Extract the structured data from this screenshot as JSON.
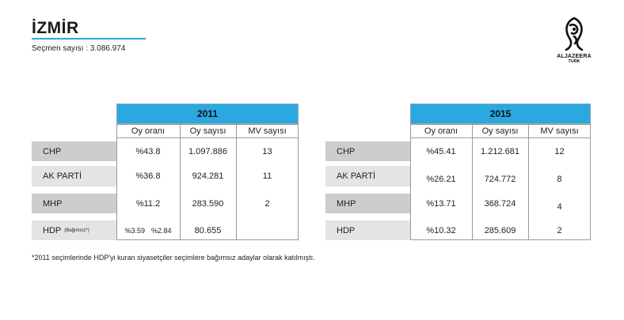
{
  "header": {
    "title": "İZMİR",
    "voters": "Seçmen sayısı : 3.086.974"
  },
  "logo": {
    "name": "ALJAZEERA",
    "sub": "TURK"
  },
  "columns": [
    "Oy oranı",
    "Oy sayısı",
    "MV sayısı"
  ],
  "table_2011": {
    "year": "2011",
    "rows": [
      {
        "party": "CHP",
        "party_note": "",
        "rate": "%43.8",
        "rate_split": [
          "",
          ""
        ],
        "votes": "1.097.886",
        "mv": "13"
      },
      {
        "party": "AK PARTİ",
        "party_note": "",
        "rate": "%36.8",
        "rate_split": [
          "",
          ""
        ],
        "votes": "924.281",
        "mv": "11"
      },
      {
        "party": "MHP",
        "party_note": "",
        "rate": "%11.2",
        "rate_split": [
          "",
          ""
        ],
        "votes": "283.590",
        "mv": "2"
      },
      {
        "party": "HDP",
        "party_note": "(Bağımsız*)",
        "rate": "",
        "rate_split": [
          "%3.59",
          "%2.84"
        ],
        "votes": "80.655",
        "mv": ""
      }
    ]
  },
  "table_2015": {
    "year": "2015",
    "rows": [
      {
        "party": "CHP",
        "rate": "%45.41",
        "votes": "1.212.681",
        "mv": "12"
      },
      {
        "party": "AK PARTİ",
        "rate": "%26.21",
        "votes": "724.772",
        "mv": "8"
      },
      {
        "party": "MHP",
        "rate": "%13.71",
        "votes": "368.724",
        "mv": "4"
      },
      {
        "party": "HDP",
        "rate": "%10.32",
        "votes": "285.609",
        "mv": "2"
      }
    ]
  },
  "footnote": "*2011 seçimlerinde HDP'yi kuran siyasetçiler seçimlere bağımsız adaylar olarak katılmıştı."
}
